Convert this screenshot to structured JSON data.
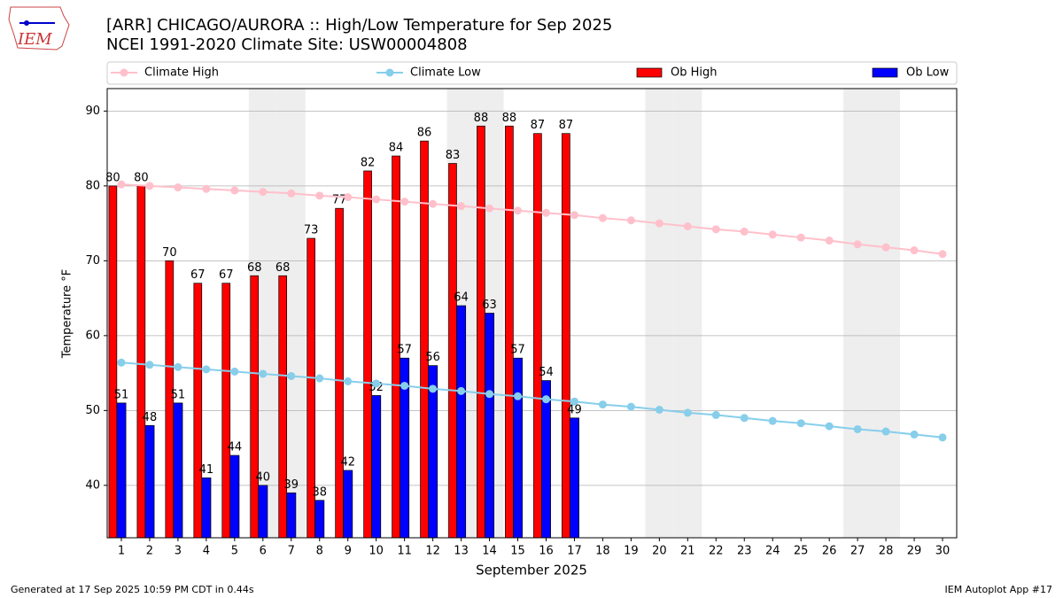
{
  "logo_text": "IEM",
  "footer_left": "Generated at 17 Sep 2025 10:59 PM CDT in 0.44s",
  "footer_right": "IEM Autoplot App #17",
  "chart_data": {
    "type": "bar",
    "title": "[ARR] CHICAGO/AURORA :: High/Low Temperature for Sep 2025",
    "subtitle": "NCEI 1991-2020 Climate Site: USW00004808",
    "xlabel": "September 2025",
    "ylabel": "Temperature °F",
    "x": [
      1,
      2,
      3,
      4,
      5,
      6,
      7,
      8,
      9,
      10,
      11,
      12,
      13,
      14,
      15,
      16,
      17,
      18,
      19,
      20,
      21,
      22,
      23,
      24,
      25,
      26,
      27,
      28,
      29,
      30
    ],
    "xlim": [
      0.5,
      30.5
    ],
    "xticks": [
      1,
      2,
      3,
      4,
      5,
      6,
      7,
      8,
      9,
      10,
      11,
      12,
      13,
      14,
      15,
      16,
      17,
      18,
      19,
      20,
      21,
      22,
      23,
      24,
      25,
      26,
      27,
      28,
      29,
      30
    ],
    "ylim": [
      33,
      93
    ],
    "yticks": [
      40,
      50,
      60,
      70,
      80,
      90
    ],
    "grid": "y",
    "legend_position": "top",
    "shaded_x": [
      6,
      7,
      13,
      14,
      20,
      21,
      27,
      28
    ],
    "series": [
      {
        "name": "Climate High",
        "type": "line",
        "color": "#ffc0cb",
        "values": [
          80.2,
          80.0,
          79.8,
          79.6,
          79.4,
          79.2,
          79.0,
          78.7,
          78.5,
          78.2,
          77.9,
          77.6,
          77.3,
          77.0,
          76.7,
          76.4,
          76.1,
          75.7,
          75.4,
          75.0,
          74.6,
          74.2,
          73.9,
          73.5,
          73.1,
          72.7,
          72.2,
          71.8,
          71.4,
          70.9
        ]
      },
      {
        "name": "Climate Low",
        "type": "line",
        "color": "#87ceeb",
        "values": [
          56.4,
          56.1,
          55.8,
          55.5,
          55.2,
          54.9,
          54.6,
          54.3,
          53.9,
          53.6,
          53.3,
          52.9,
          52.6,
          52.2,
          51.9,
          51.5,
          51.2,
          50.8,
          50.5,
          50.1,
          49.7,
          49.4,
          49.0,
          48.6,
          48.3,
          47.9,
          47.5,
          47.2,
          46.8,
          46.4
        ]
      },
      {
        "name": "Ob High",
        "type": "bar",
        "color": "#ff0000",
        "values": [
          80,
          80,
          70,
          67,
          67,
          68,
          68,
          73,
          77,
          82,
          84,
          86,
          83,
          88,
          88,
          87,
          87,
          null,
          null,
          null,
          null,
          null,
          null,
          null,
          null,
          null,
          null,
          null,
          null,
          null
        ]
      },
      {
        "name": "Ob Low",
        "type": "bar",
        "color": "#0000ff",
        "values": [
          51,
          48,
          51,
          41,
          44,
          40,
          39,
          38,
          42,
          52,
          57,
          56,
          64,
          63,
          57,
          54,
          49,
          null,
          null,
          null,
          null,
          null,
          null,
          null,
          null,
          null,
          null,
          null,
          null,
          null
        ]
      }
    ]
  }
}
